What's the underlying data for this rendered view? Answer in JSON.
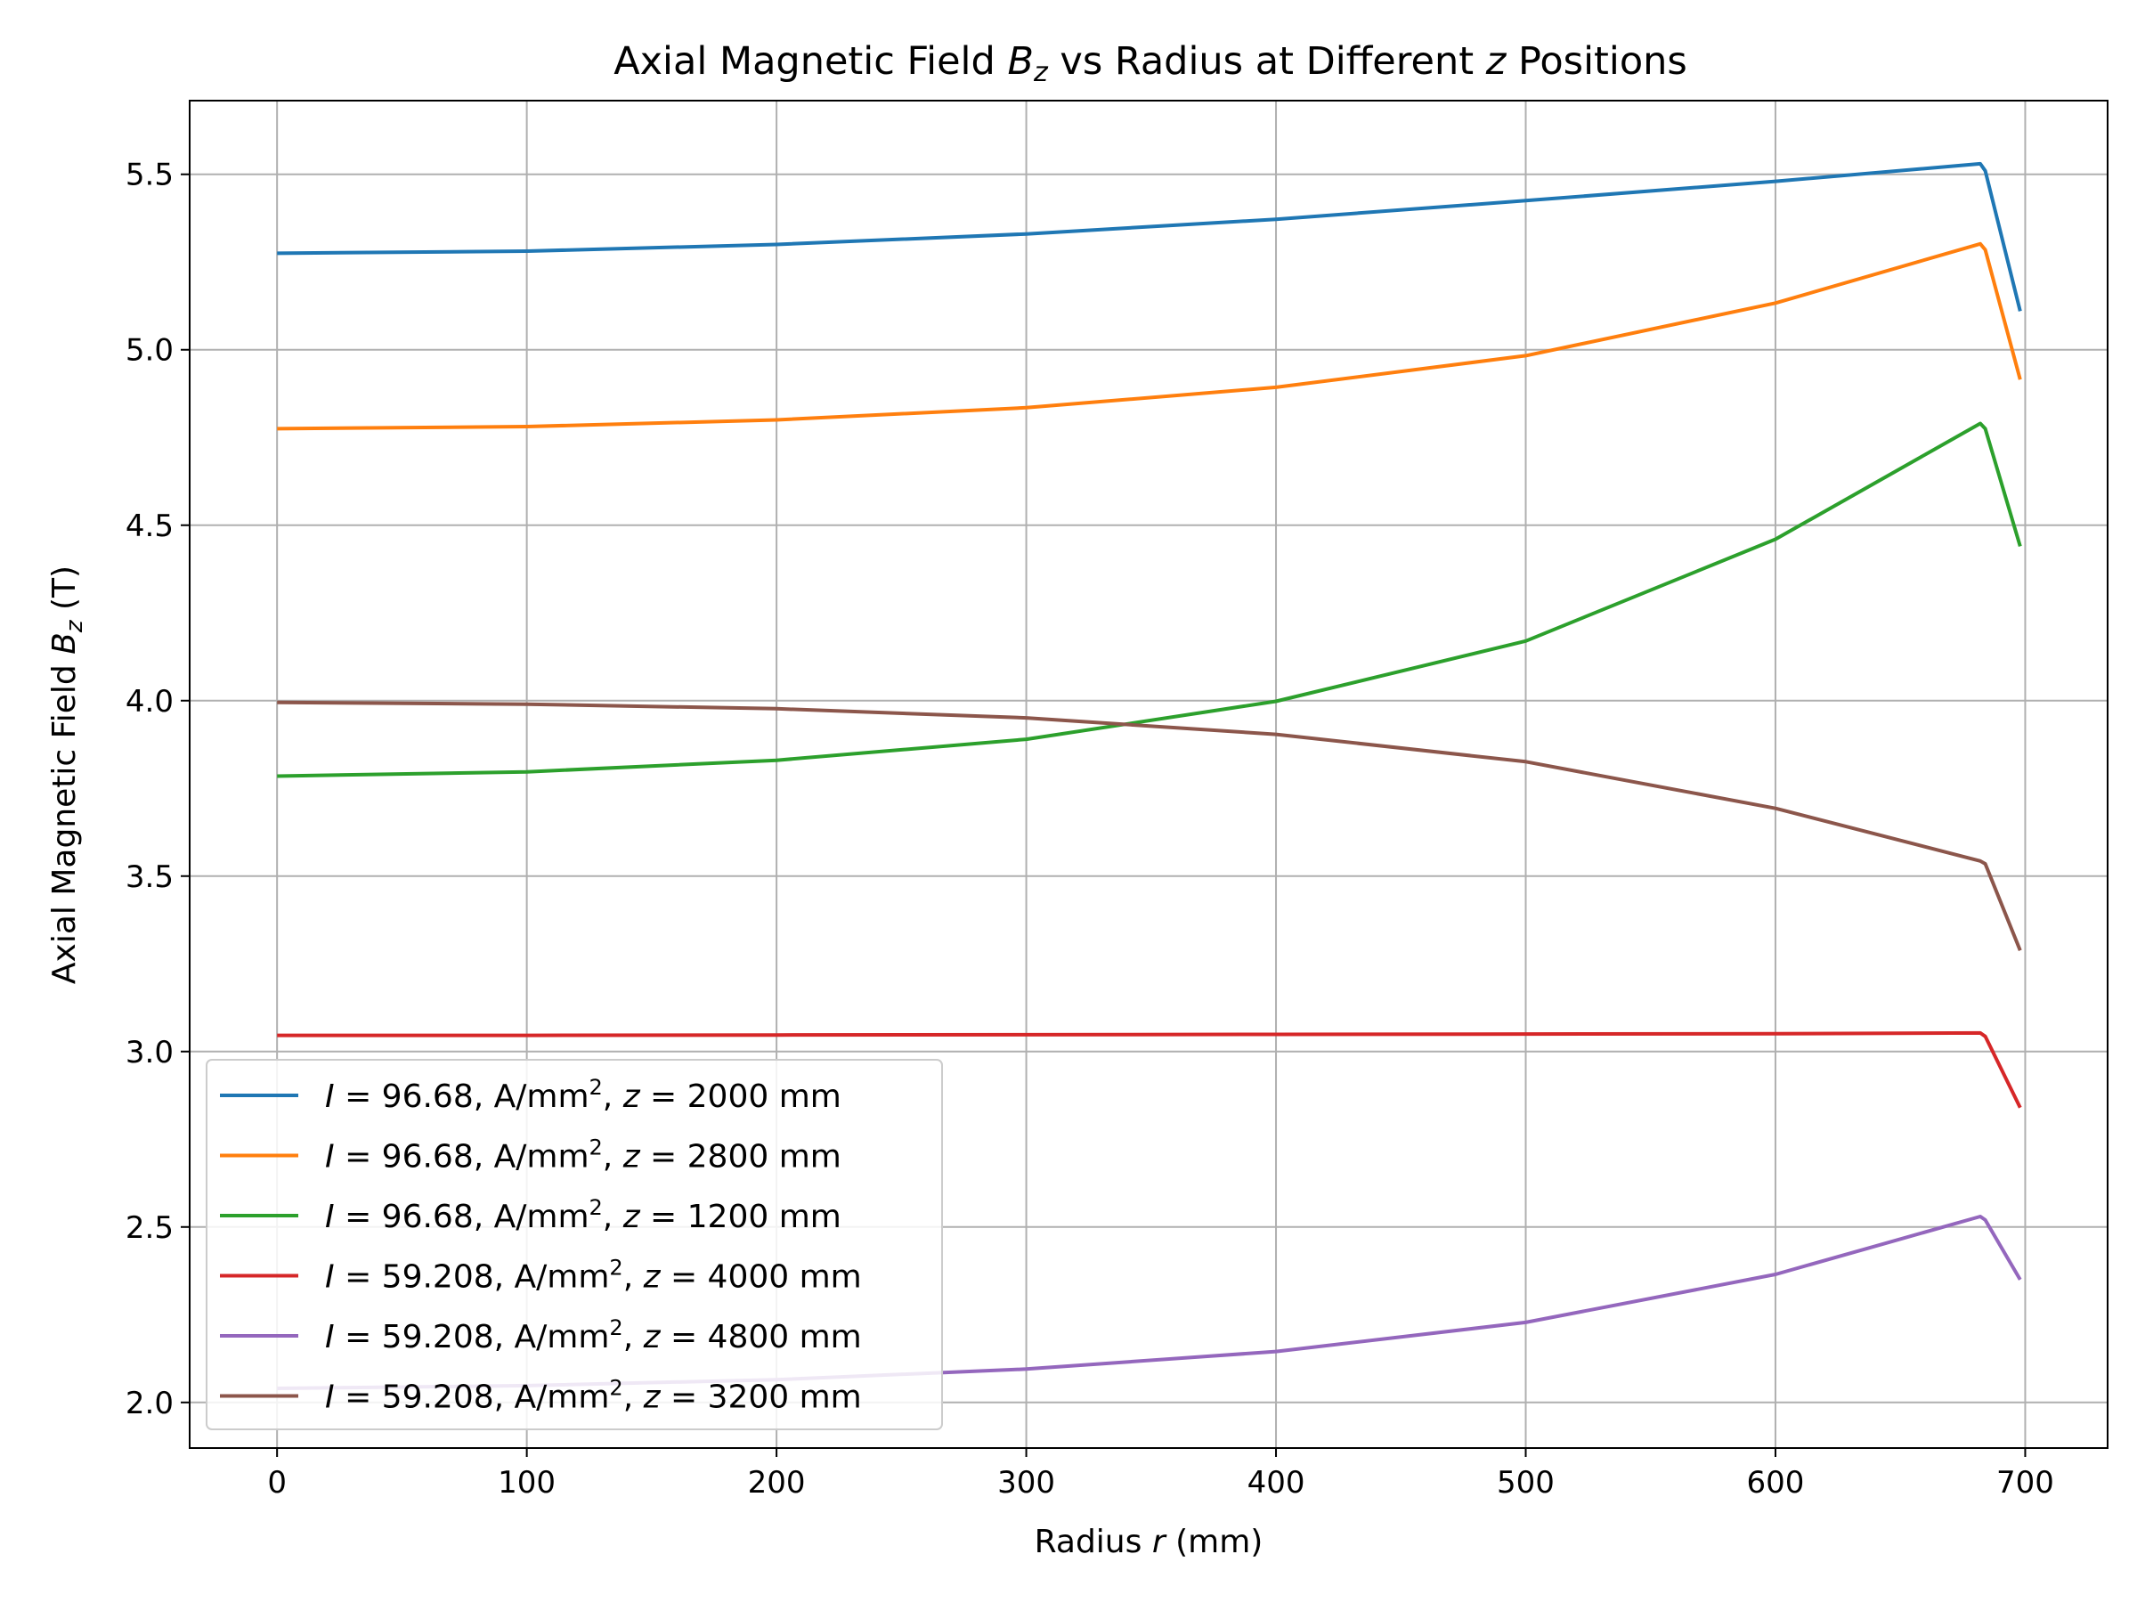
{
  "chart_data": {
    "type": "line",
    "title": {
      "prefix": "Axial Magnetic Field ",
      "sym": "B",
      "sub": "z",
      "middle": " vs Radius at Different ",
      "var": "z",
      "suffix": " Positions"
    },
    "xlabel": {
      "prefix": "Radius ",
      "var": "r",
      "suffix": " (mm)"
    },
    "ylabel": {
      "prefix": "Axial Magnetic Field ",
      "sym": "B",
      "sub": "z",
      "suffix": " (T)"
    },
    "xlim": [
      -35,
      733
    ],
    "ylim": [
      1.87,
      5.71
    ],
    "xticks": [
      0,
      100,
      200,
      300,
      400,
      500,
      600,
      700
    ],
    "xtick_labels": [
      "0",
      "100",
      "200",
      "300",
      "400",
      "500",
      "600",
      "700"
    ],
    "yticks": [
      2.0,
      2.5,
      3.0,
      3.5,
      4.0,
      4.5,
      5.0,
      5.5
    ],
    "ytick_labels": [
      "2.0",
      "2.5",
      "3.0",
      "3.5",
      "4.0",
      "4.5",
      "5.0",
      "5.5"
    ],
    "grid": true,
    "legend_position": "lower-left",
    "series": [
      {
        "name": "J = 96.68, A/mm², z = 2000 mm",
        "legend": {
          "var": "I",
          "current": "96.68",
          "unit": "A/mm",
          "sup": "2",
          "zval": "2000",
          "zunit": "mm"
        },
        "color": "#1f77b4",
        "x": [
          0,
          100,
          200,
          300,
          400,
          500,
          600,
          682,
          684,
          698
        ],
        "y": [
          5.275,
          5.281,
          5.3,
          5.33,
          5.372,
          5.425,
          5.48,
          5.53,
          5.51,
          5.11
        ]
      },
      {
        "name": "J = 96.68, A/mm², z = 2800 mm",
        "legend": {
          "var": "I",
          "current": "96.68",
          "unit": "A/mm",
          "sup": "2",
          "zval": "2800",
          "zunit": "mm"
        },
        "color": "#ff7f0e",
        "x": [
          0,
          100,
          200,
          300,
          400,
          500,
          600,
          682,
          684,
          698
        ],
        "y": [
          4.775,
          4.781,
          4.8,
          4.835,
          4.893,
          4.983,
          5.133,
          5.302,
          5.285,
          4.915
        ]
      },
      {
        "name": "J = 96.68, A/mm², z = 1200 mm",
        "legend": {
          "var": "I",
          "current": "96.68",
          "unit": "A/mm",
          "sup": "2",
          "zval": "1200",
          "zunit": "mm"
        },
        "color": "#2ca02c",
        "x": [
          0,
          100,
          200,
          300,
          400,
          500,
          600,
          682,
          684,
          698
        ],
        "y": [
          3.785,
          3.797,
          3.83,
          3.89,
          3.998,
          4.17,
          4.46,
          4.79,
          4.775,
          4.44
        ]
      },
      {
        "name": "J = 59.208, A/mm², z = 4000 mm",
        "legend": {
          "var": "I",
          "current": "59.208",
          "unit": "A/mm",
          "sup": "2",
          "zval": "4000",
          "zunit": "mm"
        },
        "color": "#d62728",
        "x": [
          0,
          100,
          200,
          300,
          400,
          500,
          600,
          682,
          684,
          698
        ],
        "y": [
          3.046,
          3.046,
          3.047,
          3.048,
          3.049,
          3.05,
          3.051,
          3.053,
          3.043,
          2.84
        ]
      },
      {
        "name": "J = 59.208, A/mm², z = 4800 mm",
        "legend": {
          "var": "I",
          "current": "59.208",
          "unit": "A/mm",
          "sup": "2",
          "zval": "4800",
          "zunit": "mm"
        },
        "color": "#9467bd",
        "x": [
          0,
          100,
          200,
          300,
          400,
          500,
          600,
          682,
          684,
          698
        ],
        "y": [
          2.04,
          2.048,
          2.065,
          2.095,
          2.145,
          2.228,
          2.365,
          2.53,
          2.52,
          2.35
        ]
      },
      {
        "name": "J = 59.208, A/mm², z = 3200 mm",
        "legend": {
          "var": "I",
          "current": "59.208",
          "unit": "A/mm",
          "sup": "2",
          "zval": "3200",
          "zunit": "mm"
        },
        "color": "#8c564b",
        "x": [
          0,
          100,
          200,
          300,
          400,
          500,
          600,
          682,
          684,
          698
        ],
        "y": [
          3.995,
          3.99,
          3.977,
          3.951,
          3.904,
          3.826,
          3.693,
          3.543,
          3.535,
          3.288
        ]
      }
    ]
  }
}
